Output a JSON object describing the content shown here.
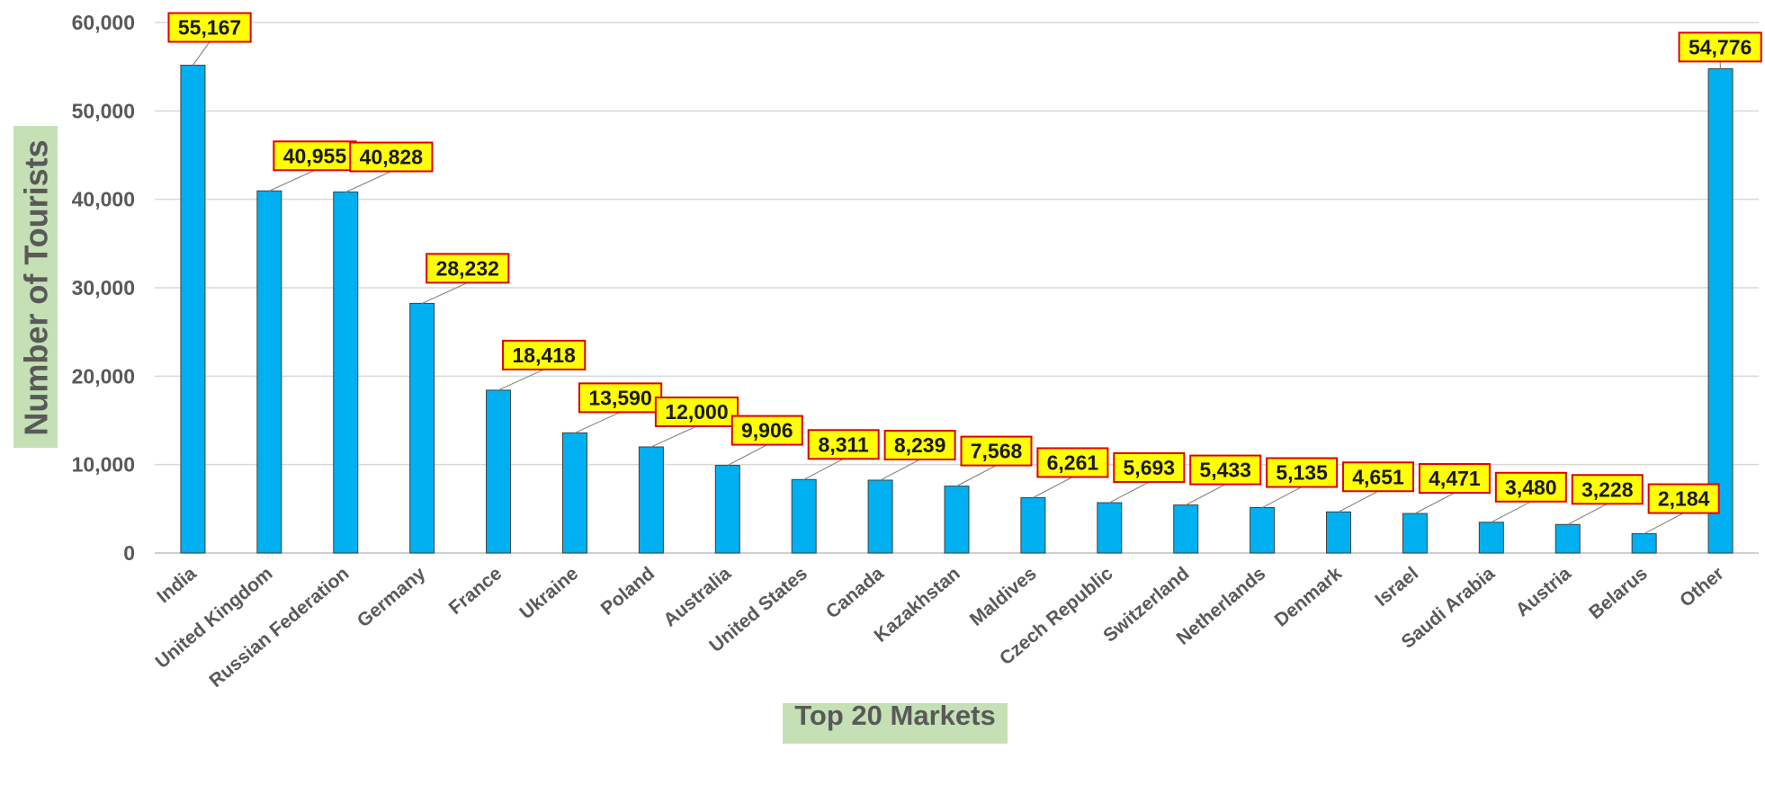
{
  "chart_data": {
    "type": "bar",
    "categories": [
      "India",
      "United Kingdom",
      "Russian Federation",
      "Germany",
      "France",
      "Ukraine",
      "Poland",
      "Australia",
      "United States",
      "Canada",
      "Kazakhstan",
      "Maldives",
      "Czech Republic",
      "Switzerland",
      "Netherlands",
      "Denmark",
      "Israel",
      "Saudi Arabia",
      "Austria",
      "Belarus",
      "Other"
    ],
    "values": [
      55167,
      40955,
      40828,
      28232,
      18418,
      13590,
      12000,
      9906,
      8311,
      8239,
      7568,
      6261,
      5693,
      5433,
      5135,
      4651,
      4471,
      3480,
      3228,
      2184,
      54776
    ],
    "data_labels": [
      "55,167",
      "40,955",
      "40,828",
      "28,232",
      "18,418",
      "13,590",
      "12,000",
      "9,906",
      "8,311",
      "8,239",
      "7,568",
      "6,261",
      "5,693",
      "5,433",
      "5,135",
      "4,651",
      "4,471",
      "3,480",
      "3,228",
      "2,184",
      "54,776"
    ],
    "xlabel": "Top 20 Markets",
    "ylabel": "Number of Tourists",
    "ylim": [
      0,
      60000
    ],
    "yticks": [
      0,
      10000,
      20000,
      30000,
      40000,
      50000,
      60000
    ],
    "ytick_labels": [
      "0",
      "10,000",
      "20,000",
      "30,000",
      "40,000",
      "50,000",
      "60,000"
    ],
    "grid": true,
    "legend": "none",
    "colors": {
      "bar_fill": "#00b0f0",
      "bar_outline": "#404040",
      "label_fill": "#ffff00",
      "label_border": "#e00000",
      "axis_title_background": "#c5e0b4",
      "text": "#595959",
      "gridline": "#d9d9d9"
    }
  }
}
